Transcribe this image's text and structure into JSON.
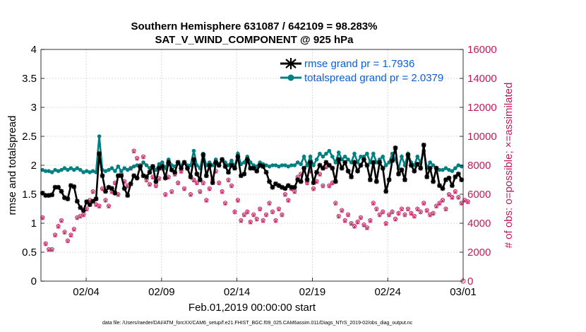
{
  "chart_data": {
    "type": "line",
    "title_line1": "Southern Hemisphere 631087 / 642109 = 98.283%",
    "title_line2": "SAT_V_WIND_COMPONENT @ 925 hPa",
    "xlabel": "Feb.01,2019 00:00:00 start",
    "ylabel_left": "rmse and totalspread",
    "ylabel_right": "# of obs: o=possible; ×=assimilated",
    "footer": "data file: /Users/raeder/DAI/ATM_forcXX/CAM6_setup/f.e21.FHIST_BGC.f09_025.CAM6assim.011/Diags_NTrS_2019-02/obs_diag_output.nc",
    "xlim": [
      0,
      28
    ],
    "ylim_left": [
      0,
      4
    ],
    "ylim_right": [
      0,
      16000
    ],
    "x_ticks": [
      3,
      8,
      13,
      18,
      23,
      28
    ],
    "x_tick_labels": [
      "02/04",
      "02/09",
      "02/14",
      "02/19",
      "02/24",
      "03/01"
    ],
    "y_left_ticks": [
      "0",
      "0.5",
      "1",
      "1.5",
      "2",
      "2.5",
      "3",
      "3.5",
      "4"
    ],
    "y_right_ticks": [
      "0",
      "2000",
      "4000",
      "6000",
      "8000",
      "10000",
      "12000",
      "14000",
      "16000"
    ],
    "legend": [
      {
        "name": "rmse grand pr = 1.7936",
        "color": "#000000"
      },
      {
        "name": "totalspread grand pr = 2.0379",
        "color": "#008080"
      }
    ],
    "colors": {
      "rmse": "#000000",
      "spread": "#008080",
      "obs": "#c2185b"
    },
    "series": [
      {
        "name": "rmse",
        "axis": "left",
        "values": [
          1.52,
          1.48,
          1.48,
          1.49,
          1.62,
          1.62,
          1.55,
          1.44,
          1.42,
          1.65,
          1.63,
          1.38,
          1.27,
          1.22,
          1.37,
          1.32,
          1.38,
          1.42,
          2.2,
          1.82,
          1.55,
          1.62,
          1.6,
          1.52,
          1.82,
          1.82,
          1.6,
          1.48,
          1.68,
          1.82,
          1.78,
          1.98,
          1.82,
          1.8,
          1.88,
          1.98,
          1.72,
          1.95,
          1.98,
          1.78,
          2.05,
          1.92,
          1.88,
          2.05,
          1.95,
          2.05,
          1.95,
          1.8,
          2.1,
          1.85,
          1.75,
          2.18,
          1.82,
          2.0,
          1.7,
          2.05,
          2.0,
          2.1,
          1.98,
          1.88,
          2.0,
          1.95,
          2.15,
          1.82,
          1.85,
          2.1,
          1.95,
          1.95,
          1.9,
          2.0,
          1.98,
          1.88,
          1.72,
          1.62,
          1.68,
          1.65,
          1.62,
          1.6,
          1.65,
          1.62,
          1.62,
          1.75,
          1.72,
          1.95,
          1.75,
          2.05,
          1.7,
          1.88,
          2.0,
          1.95,
          2.05,
          2.0,
          1.95,
          1.72,
          2.1,
          1.95,
          2.05,
          1.9,
          1.8,
          2.05,
          1.9,
          2.0,
          2.1,
          2.0,
          1.75,
          2.05,
          1.72,
          2.05,
          1.95,
          1.55,
          1.75,
          2.08,
          2.3,
          1.85,
          1.92,
          1.75,
          2.18,
          2.0,
          1.9,
          2.02,
          1.95,
          2.35,
          1.8,
          1.95,
          1.72,
          1.95,
          1.65,
          1.6,
          1.75,
          1.78,
          1.65,
          1.8,
          1.85,
          1.75
        ]
      },
      {
        "name": "totalspread",
        "axis": "left",
        "values": [
          1.92,
          1.9,
          1.9,
          1.88,
          1.92,
          1.9,
          1.92,
          1.95,
          1.92,
          1.95,
          1.92,
          1.95,
          1.92,
          1.88,
          1.9,
          1.88,
          1.9,
          1.88,
          2.5,
          1.92,
          1.9,
          1.92,
          1.95,
          1.9,
          1.98,
          1.9,
          1.95,
          1.92,
          1.95,
          1.98,
          2.0,
          1.95,
          2.05,
          2.0,
          1.95,
          1.98,
          1.92,
          2.02,
          2.05,
          1.95,
          2.1,
          2.0,
          1.98,
          2.05,
          2.0,
          2.05,
          2.0,
          2.0,
          2.25,
          2.0,
          1.95,
          2.2,
          2.0,
          2.05,
          2.0,
          2.1,
          2.02,
          2.1,
          2.05,
          2.0,
          2.08,
          1.98,
          2.2,
          2.02,
          2.05,
          2.15,
          2.05,
          2.0,
          1.98,
          2.05,
          2.02,
          2.0,
          1.98,
          2.0,
          2.0,
          1.98,
          2.0,
          2.0,
          1.98,
          2.0,
          2.0,
          2.05,
          2.02,
          2.15,
          2.0,
          2.15,
          2.0,
          2.1,
          2.2,
          2.15,
          2.2,
          2.25,
          2.15,
          2.05,
          2.22,
          2.1,
          2.15,
          2.1,
          2.05,
          2.2,
          2.05,
          2.15,
          2.15,
          2.2,
          2.05,
          2.2,
          2.05,
          2.1,
          2.15,
          2.0,
          2.05,
          2.2,
          2.1,
          1.95,
          2.15,
          2.0,
          2.2,
          2.05,
          2.0,
          2.15,
          2.05,
          2.25,
          1.95,
          2.05,
          2.0,
          1.95,
          1.92,
          1.92,
          1.95,
          1.92,
          1.9,
          1.95,
          2.0,
          1.98
        ]
      },
      {
        "name": "obs_possible",
        "axis": "right",
        "values": [
          4400,
          2600,
          2200,
          2200,
          3200,
          3800,
          4200,
          3400,
          2800,
          3200,
          3600,
          4400,
          4500,
          4600,
          5000,
          5600,
          6200,
          5300,
          5200,
          6400,
          5600,
          5200,
          6200,
          6800,
          6000,
          7400,
          6900,
          6600,
          7800,
          9000,
          8500,
          8000,
          8600,
          7000,
          6700,
          7200,
          6600,
          7100,
          7800,
          6000,
          7200,
          6200,
          7400,
          6800,
          7600,
          6400,
          7800,
          6000,
          7000,
          6800,
          6200,
          6800,
          5600,
          6400,
          7000,
          7600,
          6800,
          6200,
          5400,
          7000,
          6600,
          4800,
          5600,
          4200,
          4600,
          4800,
          4100,
          4600,
          4300,
          5000,
          4200,
          4600,
          5400,
          4800,
          4200,
          5000,
          4600,
          6000,
          5600,
          6400,
          6200,
          7200,
          7400,
          7800,
          6800,
          7600,
          6400,
          6900,
          7400,
          6600,
          7900,
          6600,
          6800,
          5400,
          4500,
          4900,
          4200,
          4600,
          4000,
          3800,
          4100,
          4400,
          3900,
          3700,
          4200,
          5400,
          5000,
          4600,
          4800,
          4000,
          4600,
          4800,
          4300,
          4700,
          5000,
          4600,
          5000,
          4700,
          4500,
          5000,
          4800,
          5400,
          4900,
          4600,
          4700,
          5200,
          5400,
          5600,
          5000,
          6000,
          5800,
          6200,
          5800,
          5400,
          5600,
          5500
        ]
      },
      {
        "name": "obs_assimilated",
        "axis": "right",
        "values": [
          4350,
          2550,
          2150,
          2150,
          3150,
          3750,
          4150,
          3350,
          2750,
          3150,
          3550,
          4350,
          4450,
          4550,
          4950,
          5550,
          6150,
          5250,
          5150,
          6350,
          5550,
          5150,
          6150,
          6750,
          5950,
          7350,
          6850,
          6550,
          7750,
          8950,
          8450,
          7950,
          8550,
          6950,
          6650,
          7150,
          6550,
          7050,
          7750,
          5950,
          7150,
          6150,
          7350,
          6750,
          7550,
          6350,
          7750,
          5950,
          6950,
          6750,
          6150,
          6750,
          5550,
          6350,
          6950,
          7550,
          6750,
          6150,
          5350,
          6950,
          6550,
          4750,
          5550,
          4150,
          4550,
          4750,
          4050,
          4550,
          4250,
          4950,
          4150,
          4550,
          5350,
          4750,
          4150,
          4950,
          4550,
          5950,
          5550,
          6350,
          6150,
          7150,
          7350,
          7750,
          6750,
          7550,
          6350,
          6850,
          7350,
          6550,
          7850,
          6550,
          6750,
          5350,
          4450,
          4850,
          4150,
          4550,
          3950,
          3750,
          4050,
          4350,
          3850,
          3650,
          4150,
          5350,
          4950,
          4550,
          4750,
          3950,
          4550,
          4750,
          4250,
          4650,
          4950,
          4550,
          4950,
          4650,
          4450,
          4950,
          4750,
          5350,
          4850,
          4550,
          4650,
          5150,
          5350,
          5550,
          4950,
          5950,
          5750,
          6150,
          5750,
          5350,
          5550,
          5450
        ]
      }
    ]
  }
}
